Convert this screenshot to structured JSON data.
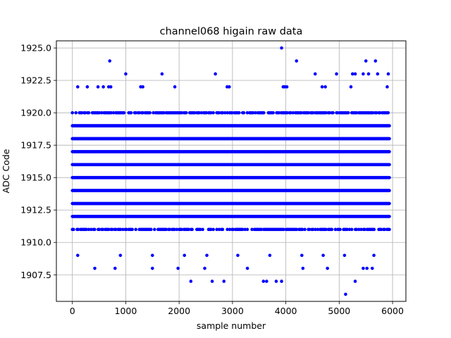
{
  "chart_data": {
    "type": "scatter",
    "title": "channel068 higain raw data",
    "xlabel": "sample number",
    "ylabel": "ADC Code",
    "xlim": [
      -300,
      6250
    ],
    "ylim": [
      1905.45,
      1925.55
    ],
    "xticks": [
      0,
      1000,
      2000,
      3000,
      4000,
      5000,
      6000
    ],
    "xtick_labels": [
      "0",
      "1000",
      "2000",
      "3000",
      "4000",
      "5000",
      "6000"
    ],
    "yticks": [
      1907.5,
      1910.0,
      1912.5,
      1915.0,
      1917.5,
      1920.0,
      1922.5,
      1925.0
    ],
    "ytick_labels": [
      "1907.5",
      "1910.0",
      "1912.5",
      "1915.0",
      "1917.5",
      "1920.0",
      "1922.5",
      "1925.0"
    ],
    "grid": true,
    "marker_color": "#0000ff",
    "x_range": [
      0,
      5940
    ],
    "dense_levels": [
      1911,
      1912,
      1913,
      1914,
      1915,
      1916,
      1917,
      1918,
      1919,
      1920
    ],
    "sparse_points": [
      {
        "x": 3920,
        "y": 1925
      },
      {
        "x": 700,
        "y": 1924
      },
      {
        "x": 4200,
        "y": 1924
      },
      {
        "x": 5500,
        "y": 1924
      },
      {
        "x": 5680,
        "y": 1924
      },
      {
        "x": 1000,
        "y": 1923
      },
      {
        "x": 1680,
        "y": 1923
      },
      {
        "x": 2680,
        "y": 1923
      },
      {
        "x": 4550,
        "y": 1923
      },
      {
        "x": 4950,
        "y": 1923
      },
      {
        "x": 5250,
        "y": 1923
      },
      {
        "x": 5300,
        "y": 1923
      },
      {
        "x": 5450,
        "y": 1923
      },
      {
        "x": 5550,
        "y": 1923
      },
      {
        "x": 5720,
        "y": 1923
      },
      {
        "x": 5920,
        "y": 1923
      },
      {
        "x": 100,
        "y": 1922
      },
      {
        "x": 280,
        "y": 1922
      },
      {
        "x": 480,
        "y": 1922
      },
      {
        "x": 580,
        "y": 1922
      },
      {
        "x": 680,
        "y": 1922
      },
      {
        "x": 720,
        "y": 1922
      },
      {
        "x": 1280,
        "y": 1922
      },
      {
        "x": 1320,
        "y": 1922
      },
      {
        "x": 1920,
        "y": 1922
      },
      {
        "x": 2900,
        "y": 1922
      },
      {
        "x": 2940,
        "y": 1922
      },
      {
        "x": 3950,
        "y": 1922
      },
      {
        "x": 3980,
        "y": 1922
      },
      {
        "x": 4020,
        "y": 1922
      },
      {
        "x": 4680,
        "y": 1922
      },
      {
        "x": 4740,
        "y": 1922
      },
      {
        "x": 5220,
        "y": 1922
      },
      {
        "x": 5900,
        "y": 1922
      },
      {
        "x": 100,
        "y": 1909
      },
      {
        "x": 900,
        "y": 1909
      },
      {
        "x": 1500,
        "y": 1909
      },
      {
        "x": 2100,
        "y": 1909
      },
      {
        "x": 2520,
        "y": 1909
      },
      {
        "x": 3100,
        "y": 1909
      },
      {
        "x": 3700,
        "y": 1909
      },
      {
        "x": 4300,
        "y": 1909
      },
      {
        "x": 4700,
        "y": 1909
      },
      {
        "x": 5100,
        "y": 1909
      },
      {
        "x": 5650,
        "y": 1909
      },
      {
        "x": 420,
        "y": 1908
      },
      {
        "x": 800,
        "y": 1908
      },
      {
        "x": 1500,
        "y": 1908
      },
      {
        "x": 1980,
        "y": 1908
      },
      {
        "x": 2480,
        "y": 1908
      },
      {
        "x": 3280,
        "y": 1908
      },
      {
        "x": 4320,
        "y": 1908
      },
      {
        "x": 4780,
        "y": 1908
      },
      {
        "x": 5450,
        "y": 1908
      },
      {
        "x": 5520,
        "y": 1908
      },
      {
        "x": 5620,
        "y": 1908
      },
      {
        "x": 2220,
        "y": 1907
      },
      {
        "x": 2620,
        "y": 1907
      },
      {
        "x": 2840,
        "y": 1907
      },
      {
        "x": 3580,
        "y": 1907
      },
      {
        "x": 3640,
        "y": 1907
      },
      {
        "x": 3820,
        "y": 1907
      },
      {
        "x": 3920,
        "y": 1907
      },
      {
        "x": 5300,
        "y": 1907
      },
      {
        "x": 5120,
        "y": 1906
      }
    ]
  }
}
